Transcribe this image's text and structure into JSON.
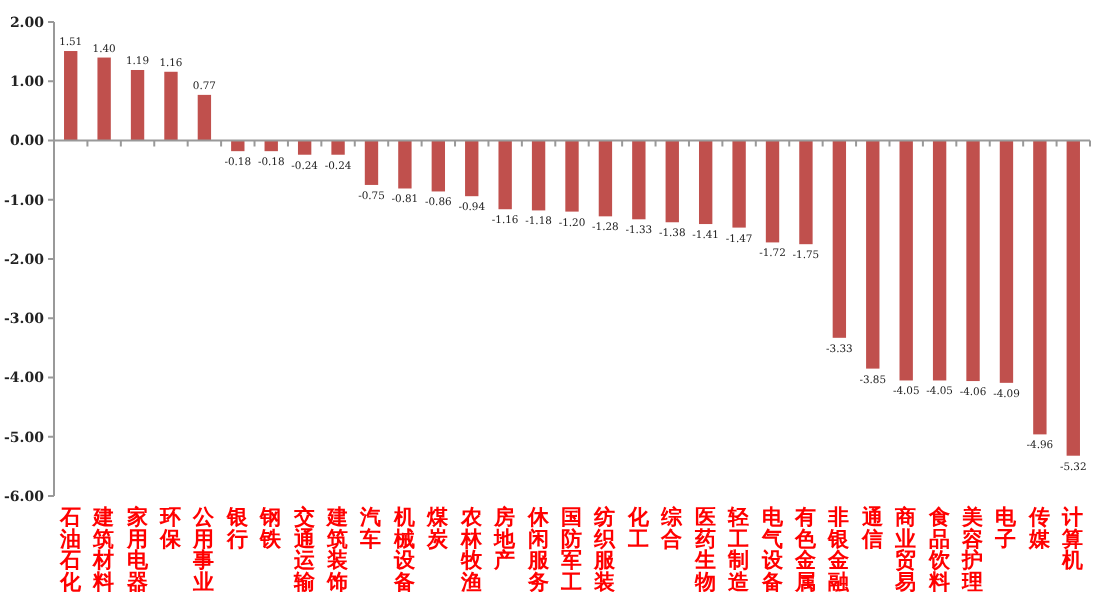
{
  "chart_data": {
    "type": "bar",
    "categories": [
      "石油石化",
      "建筑材料",
      "家用电器",
      "环保",
      "公用事业",
      "银行",
      "钢铁",
      "交通运输",
      "建筑装饰",
      "汽车",
      "机械设备",
      "煤炭",
      "农林牧渔",
      "房地产",
      "休闲服务",
      "国防军工",
      "纺织服装",
      "化工",
      "综合",
      "医药生物",
      "轻工制造",
      "电气设备",
      "有色金属",
      "非银金融",
      "通信",
      "商业贸易",
      "食品饮料",
      "美容护理",
      "电子",
      "传媒",
      "计算机"
    ],
    "values": [
      1.51,
      1.4,
      1.19,
      1.16,
      0.77,
      -0.18,
      -0.18,
      -0.24,
      -0.24,
      -0.75,
      -0.81,
      -0.86,
      -0.94,
      -1.16,
      -1.18,
      -1.2,
      -1.28,
      -1.33,
      -1.38,
      -1.41,
      -1.47,
      -1.72,
      -1.75,
      -3.33,
      -3.85,
      -4.05,
      -4.05,
      -4.06,
      -4.09,
      -4.96,
      -5.32
    ],
    "color": "#c0504d",
    "ylim": [
      -6,
      2
    ],
    "yticks": [
      {
        "value": 2,
        "label": "2.00"
      },
      {
        "value": 1,
        "label": "1.00"
      },
      {
        "value": 0,
        "label": "0.00"
      },
      {
        "value": -1,
        "label": "-1.00"
      },
      {
        "value": -2,
        "label": "-2.00"
      },
      {
        "value": -3,
        "label": "-3.00"
      },
      {
        "value": -4,
        "label": "-4.00"
      },
      {
        "value": -5,
        "label": "-5.00"
      },
      {
        "value": -6,
        "label": "-6.00"
      }
    ],
    "value_labels": [
      "1.51",
      "1.40",
      "1.19",
      "1.16",
      "0.77",
      "-0.18",
      "-0.18",
      "-0.24",
      "-0.24",
      "-0.75",
      "-0.81",
      "-0.86",
      "-0.94",
      "-1.16",
      "-1.18",
      "-1.20",
      "-1.28",
      "-1.33",
      "-1.38",
      "-1.41",
      "-1.47",
      "-1.72",
      "-1.75",
      "-3.33",
      "-3.85",
      "-4.05",
      "-4.05",
      "-4.06",
      "-4.09",
      "-4.96",
      "-5.32"
    ]
  }
}
